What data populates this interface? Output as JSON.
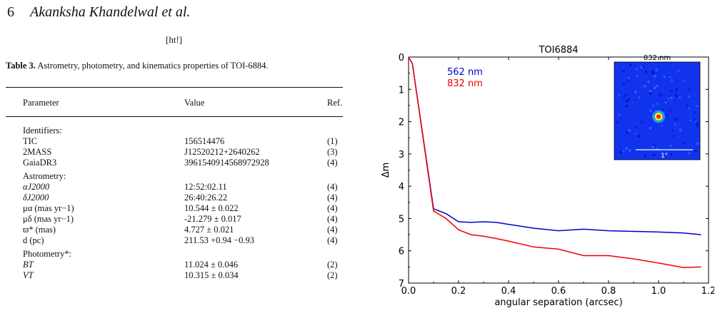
{
  "header": {
    "page_number": "6",
    "authors": "Akanksha Khandelwal et al."
  },
  "placement": "[ht!]",
  "table": {
    "caption_label": "Table 3.",
    "caption_text": " Astrometry, photometry, and kinematics properties of TOI-6884.",
    "columns": [
      "Parameter",
      "Value",
      "Ref."
    ],
    "sections": [
      {
        "title": "Identifiers:",
        "rows": [
          {
            "param": "TIC",
            "value": "156514476",
            "ref": "(1)"
          },
          {
            "param": "2MASS",
            "value": "J12520212+2640262",
            "ref": "(3)"
          },
          {
            "param": "GaiaDR3",
            "value": "3961540914568972928",
            "ref": "(4)"
          }
        ]
      },
      {
        "title": "Astrometry:",
        "rows": [
          {
            "param": "αJ2000",
            "value": "12:52:02.11",
            "ref": "(4)"
          },
          {
            "param": "δJ2000",
            "value": "26:40:26.22",
            "ref": "(4)"
          },
          {
            "param": "μα (mas yr−1)",
            "value": "10.544 ± 0.022",
            "ref": "(4)"
          },
          {
            "param": "μδ (mas yr−1)",
            "value": "-21.279 ± 0.017",
            "ref": "(4)"
          },
          {
            "param": "ϖ* (mas)",
            "value": "4.727 ± 0.021",
            "ref": "(4)"
          },
          {
            "param": "d (pc)",
            "value": "211.53 +0.94 −0.93",
            "ref": "(4)"
          }
        ]
      },
      {
        "title": "Photometry*:",
        "rows": [
          {
            "param": "BT",
            "value": "11.024 ± 0.046",
            "ref": "(2)"
          },
          {
            "param": "VT",
            "value": "10.315 ± 0.034",
            "ref": "(2)"
          }
        ]
      }
    ]
  },
  "chart_data": {
    "type": "line",
    "title": "TOI6884",
    "xlabel": "angular separation (arcsec)",
    "ylabel": "Δm",
    "xlim": [
      0.0,
      1.2
    ],
    "ylim": [
      7,
      0
    ],
    "xticks": [
      "0.0",
      "0.2",
      "0.4",
      "0.6",
      "0.8",
      "1.0",
      "1.2"
    ],
    "yticks": [
      "0",
      "1",
      "2",
      "3",
      "4",
      "5",
      "6",
      "7"
    ],
    "legend_position": "top-left",
    "series": [
      {
        "name": "562 nm",
        "color": "#0000cc",
        "x": [
          0.0,
          0.015,
          0.1,
          0.15,
          0.2,
          0.25,
          0.3,
          0.35,
          0.4,
          0.5,
          0.6,
          0.7,
          0.8,
          0.9,
          1.0,
          1.1,
          1.17
        ],
        "y": [
          0.0,
          0.2,
          4.7,
          4.85,
          5.1,
          5.12,
          5.1,
          5.12,
          5.18,
          5.3,
          5.38,
          5.33,
          5.38,
          5.4,
          5.42,
          5.45,
          5.5
        ]
      },
      {
        "name": "832 nm",
        "color": "#ee0000",
        "x": [
          0.0,
          0.015,
          0.1,
          0.15,
          0.2,
          0.25,
          0.3,
          0.35,
          0.4,
          0.5,
          0.6,
          0.7,
          0.8,
          0.9,
          1.0,
          1.1,
          1.17
        ],
        "y": [
          0.0,
          0.2,
          4.77,
          5.0,
          5.35,
          5.5,
          5.55,
          5.62,
          5.7,
          5.88,
          5.95,
          6.15,
          6.15,
          6.25,
          6.38,
          6.52,
          6.5
        ]
      }
    ],
    "inset": {
      "title": "832 nm",
      "scale_label": "1\"",
      "background_color": "#1133ee"
    }
  }
}
